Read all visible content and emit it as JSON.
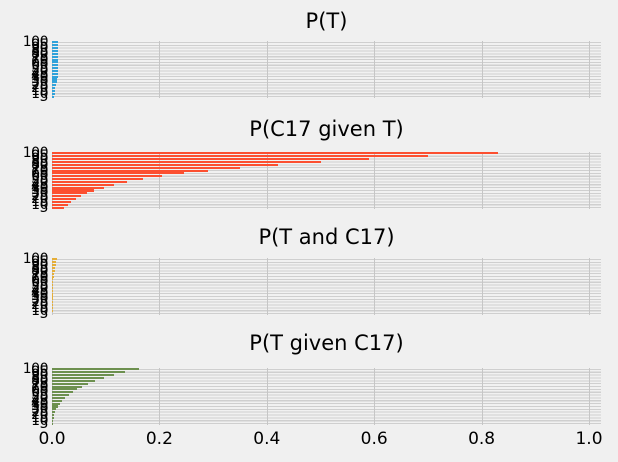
{
  "figure": {
    "background": "#f0f0f0",
    "grid_color": "#cbcbcb",
    "text_color": "#000000"
  },
  "x_axis": {
    "tick_labels": [
      "0.0",
      "0.2",
      "0.4",
      "0.6",
      "0.8",
      "1.0"
    ]
  },
  "y_axis": {
    "tick_labels": [
      "100",
      "95",
      "90",
      "85",
      "80",
      "75",
      "70",
      "65",
      "60",
      "55",
      "50",
      "45",
      "40",
      "35",
      "30",
      "25",
      "20",
      "15",
      "10",
      "5"
    ]
  },
  "chart_data": [
    {
      "type": "bar",
      "orientation": "horizontal",
      "title": "P(T)",
      "color": "#30a2da",
      "xlim": [
        0,
        1.02
      ],
      "grid": true,
      "legend": "none",
      "categories": [
        "100",
        "95",
        "90",
        "85",
        "80",
        "75",
        "70",
        "65",
        "60",
        "55",
        "50",
        "45",
        "40",
        "35",
        "30",
        "25",
        "20",
        "15",
        "10",
        "5"
      ],
      "values": [
        0.0112,
        0.0112,
        0.0112,
        0.0112,
        0.0112,
        0.0112,
        0.0112,
        0.0112,
        0.0112,
        0.0112,
        0.0112,
        0.0112,
        0.0112,
        0.0093,
        0.0084,
        0.0075,
        0.0065,
        0.0056,
        0.0047,
        0.0037
      ]
    },
    {
      "type": "bar",
      "orientation": "horizontal",
      "title": "P(C17 given T)",
      "color": "#fc4f30",
      "xlim": [
        0,
        1.02
      ],
      "grid": true,
      "legend": "none",
      "categories": [
        "100",
        "95",
        "90",
        "85",
        "80",
        "75",
        "70",
        "65",
        "60",
        "55",
        "50",
        "45",
        "40",
        "35",
        "30",
        "25",
        "20",
        "15",
        "10",
        "5"
      ],
      "values": [
        0.83,
        0.7,
        0.59,
        0.5,
        0.42,
        0.35,
        0.29,
        0.245,
        0.205,
        0.17,
        0.14,
        0.115,
        0.096,
        0.079,
        0.065,
        0.054,
        0.044,
        0.036,
        0.029,
        0.023
      ]
    },
    {
      "type": "bar",
      "orientation": "horizontal",
      "title": "P(T and C17)",
      "color": "#e5ae38",
      "xlim": [
        0,
        1.02
      ],
      "grid": true,
      "legend": "none",
      "categories": [
        "100",
        "95",
        "90",
        "85",
        "80",
        "75",
        "70",
        "65",
        "60",
        "55",
        "50",
        "45",
        "40",
        "35",
        "30",
        "25",
        "20",
        "15",
        "10",
        "5"
      ],
      "values": [
        0.0093,
        0.0078,
        0.0066,
        0.0056,
        0.0047,
        0.0039,
        0.0033,
        0.0027,
        0.0023,
        0.0019,
        0.0016,
        0.0013,
        0.0011,
        0.0007,
        0.0005,
        0.0004,
        0.0003,
        0.0002,
        0.00015,
        0.0001
      ]
    },
    {
      "type": "bar",
      "orientation": "horizontal",
      "title": "P(T given C17)",
      "color": "#6d904f",
      "xlim": [
        0,
        1.02
      ],
      "grid": true,
      "legend": "none",
      "categories": [
        "100",
        "95",
        "90",
        "85",
        "80",
        "75",
        "70",
        "65",
        "60",
        "55",
        "50",
        "45",
        "40",
        "35",
        "30",
        "25",
        "20",
        "15",
        "10",
        "5"
      ],
      "values": [
        0.162,
        0.136,
        0.115,
        0.097,
        0.081,
        0.067,
        0.056,
        0.047,
        0.039,
        0.032,
        0.024,
        0.019,
        0.015,
        0.011,
        0.008,
        0.006,
        0.0045,
        0.003,
        0.002,
        0.0013
      ]
    }
  ]
}
